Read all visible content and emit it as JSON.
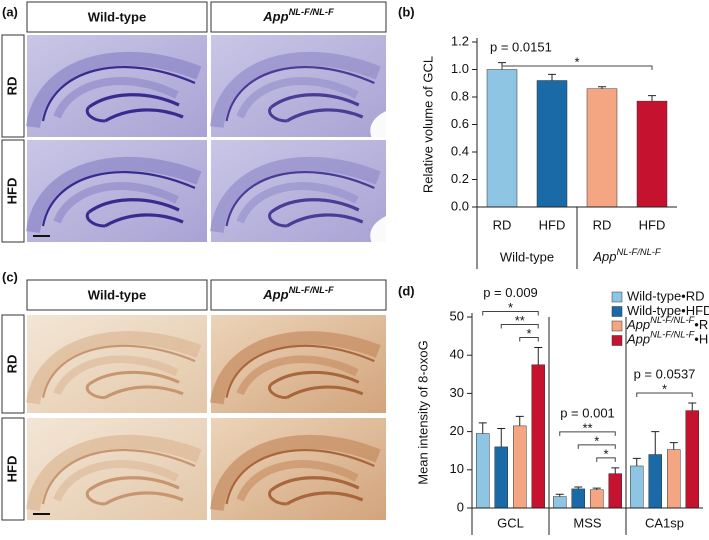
{
  "panel_labels": [
    "(a)",
    "(b)",
    "(c)",
    "(d)"
  ],
  "histology": [
    {
      "columns": [
        "Wild-type",
        {
          "base": "App",
          "sup": "NL-F/NL-F"
        }
      ],
      "rows": [
        "RD",
        "HFD"
      ]
    },
    {
      "columns": [
        "Wild-type",
        {
          "base": "App",
          "sup": "NL-F/NL-F"
        }
      ],
      "rows": [
        "RD",
        "HFD"
      ]
    }
  ],
  "chart_data": [
    {
      "type": "bar",
      "y_label": "Relative volume of GCL",
      "annotation": "p = 0.0151",
      "categories": [
        "RD",
        "HFD",
        "RD",
        "HFD"
      ],
      "values": [
        1.0,
        0.92,
        0.86,
        0.77
      ],
      "errors": [
        0.05,
        0.045,
        0.015,
        0.04
      ],
      "colors": [
        "#8ec5e2",
        "#1b6aa8",
        "#f4a582",
        "#c4122f"
      ],
      "groups": [
        {
          "label": "Wild-type",
          "from": 0,
          "to": 1
        },
        {
          "label": {
            "base": "App",
            "sup": "NL-F/NL-F"
          },
          "from": 2,
          "to": 3
        }
      ],
      "significance": [
        {
          "from": 0,
          "to": 3,
          "text": "*"
        }
      ],
      "ylim": [
        0,
        1.2
      ],
      "yticks": [
        {
          "value": 0,
          "label": "0.0"
        },
        0.2,
        0.4,
        0.6,
        0.8,
        {
          "value": 1,
          "label": "1.0"
        },
        1.2
      ]
    },
    {
      "type": "grouped_bar",
      "y_label": "Mean intensity of 8-oxoG",
      "categories": [
        "GCL",
        "MSS",
        "CA1sp"
      ],
      "series": [
        {
          "name": "Wild-type•RD",
          "color": "#8ec5e2",
          "values": [
            19.5,
            3,
            11
          ],
          "errors": [
            2.8,
            0.6,
            2
          ]
        },
        {
          "name": "Wild-type•HFD",
          "color": "#1b6aa8",
          "values": [
            16,
            5,
            14
          ],
          "errors": [
            4.8,
            0.5,
            6
          ]
        },
        {
          "name": {
            "base": "App",
            "sup": "NL-F/NL-F",
            "suffix": "•RD"
          },
          "color": "#f4a582",
          "values": [
            21.5,
            4.8,
            15.3
          ],
          "errors": [
            2.5,
            0.4,
            1.8
          ]
        },
        {
          "name": {
            "base": "App",
            "sup": "NL-F/NL-F",
            "suffix": "•HFD"
          },
          "color": "#c4122f",
          "values": [
            37.5,
            9,
            25.5
          ],
          "errors": [
            4.5,
            1.5,
            2
          ]
        }
      ],
      "group_annotations": [
        "p = 0.009",
        "p = 0.001",
        "p = 0.0537"
      ],
      "significance": [
        {
          "group": 0,
          "from": 2,
          "to": 3,
          "text": "*"
        },
        {
          "group": 0,
          "from": 1,
          "to": 3,
          "text": "**"
        },
        {
          "group": 0,
          "from": 0,
          "to": 3,
          "text": "*"
        },
        {
          "group": 1,
          "from": 2,
          "to": 3,
          "text": "*"
        },
        {
          "group": 1,
          "from": 1,
          "to": 3,
          "text": "*"
        },
        {
          "group": 1,
          "from": 0,
          "to": 3,
          "text": "**"
        },
        {
          "group": 2,
          "from": 0,
          "to": 3,
          "text": "*"
        }
      ],
      "ylim": [
        0,
        50
      ],
      "yticks": [
        0,
        10,
        20,
        30,
        40,
        50
      ],
      "legend": "upper right"
    }
  ]
}
